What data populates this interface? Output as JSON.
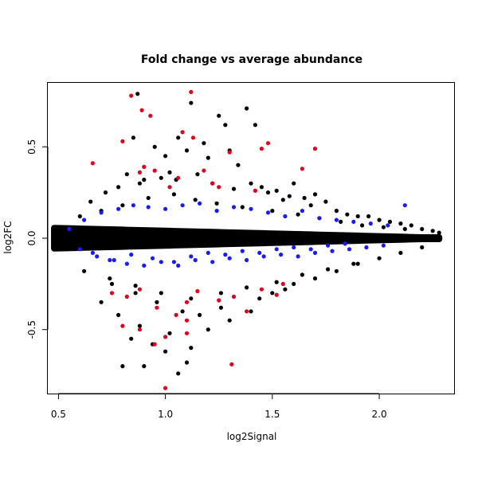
{
  "chart_data": {
    "type": "scatter",
    "title": "Fold change vs average abundance",
    "xlabel": "log2Signal",
    "ylabel": "log2FC",
    "xlim": [
      0.45,
      2.35
    ],
    "ylim": [
      -0.85,
      0.85
    ],
    "xticks": [
      0.5,
      1.0,
      1.5,
      2.0
    ],
    "xtick_labels": [
      "0.5",
      "1.0",
      "1.5",
      "2.0"
    ],
    "yticks": [
      -0.5,
      0.0,
      0.5
    ],
    "ytick_labels": [
      "-0.5",
      "0.0",
      "0.5"
    ],
    "grid": false,
    "legend": "none",
    "colors": {
      "black_points": "#000000",
      "blue_points": "#1a1aff",
      "red_points": "#e0001a"
    },
    "series": [
      {
        "color": "#000000",
        "x": [
          0.85,
          0.87,
          1.12,
          1.25,
          1.38,
          1.42,
          1.06,
          1.1,
          1.28,
          0.95,
          1.0,
          1.3,
          1.34,
          1.18,
          1.2,
          0.82,
          0.88,
          1.02,
          1.05,
          1.4,
          1.45,
          1.52,
          1.6,
          1.65,
          1.7,
          1.75,
          0.65,
          0.72,
          0.78,
          0.9,
          0.98,
          1.15,
          1.22,
          1.32,
          1.48,
          1.55,
          1.58,
          1.68,
          1.8,
          1.85,
          1.9,
          1.95,
          2.0,
          2.05,
          2.1,
          2.15,
          2.2,
          2.25,
          2.28,
          0.6,
          0.7,
          0.8,
          0.92,
          1.04,
          1.14,
          1.24,
          1.36,
          1.5,
          1.62,
          1.72,
          1.82,
          1.92,
          2.02,
          2.12,
          0.75,
          0.86,
          0.96,
          1.08,
          1.16,
          1.26,
          1.44,
          1.56,
          0.8,
          0.9,
          1.06,
          1.12,
          1.0,
          0.84,
          0.94,
          1.2,
          1.3,
          1.4,
          1.1,
          1.02,
          0.88,
          0.78,
          0.7,
          1.5,
          1.6,
          1.7,
          1.8,
          1.9,
          2.0,
          2.1,
          2.2,
          0.62,
          0.74,
          0.86,
          0.98,
          1.12,
          1.26,
          1.38,
          1.52,
          1.64,
          1.76,
          1.88
        ],
        "y": [
          0.55,
          0.79,
          0.74,
          0.67,
          0.71,
          0.62,
          0.55,
          0.48,
          0.62,
          0.5,
          0.45,
          0.48,
          0.4,
          0.52,
          0.44,
          0.35,
          0.3,
          0.36,
          0.32,
          0.3,
          0.28,
          0.26,
          0.3,
          0.22,
          0.24,
          0.2,
          0.2,
          0.25,
          0.28,
          0.32,
          0.33,
          0.35,
          0.3,
          0.27,
          0.25,
          0.21,
          0.23,
          0.18,
          0.15,
          0.13,
          0.12,
          0.12,
          0.1,
          0.09,
          0.08,
          0.07,
          0.05,
          0.04,
          0.03,
          0.12,
          0.15,
          0.18,
          0.22,
          0.24,
          0.21,
          0.19,
          0.17,
          0.15,
          0.13,
          0.11,
          0.09,
          0.07,
          0.06,
          0.05,
          -0.25,
          -0.3,
          -0.35,
          -0.4,
          -0.42,
          -0.38,
          -0.33,
          -0.28,
          -0.7,
          -0.7,
          -0.74,
          -0.6,
          -0.62,
          -0.55,
          -0.58,
          -0.5,
          -0.45,
          -0.4,
          -0.68,
          -0.52,
          -0.48,
          -0.42,
          -0.35,
          -0.3,
          -0.25,
          -0.22,
          -0.18,
          -0.14,
          -0.11,
          -0.08,
          -0.05,
          -0.18,
          -0.22,
          -0.26,
          -0.3,
          -0.33,
          -0.3,
          -0.27,
          -0.24,
          -0.2,
          -0.17,
          -0.14
        ]
      },
      {
        "color": "#1a1aff",
        "x": [
          0.55,
          0.62,
          0.7,
          0.78,
          0.85,
          0.92,
          1.0,
          1.08,
          1.16,
          1.24,
          1.32,
          1.4,
          1.48,
          1.56,
          1.64,
          1.72,
          1.8,
          1.88,
          1.96,
          2.04,
          2.12,
          0.66,
          0.74,
          0.82,
          0.9,
          0.98,
          1.06,
          1.14,
          1.22,
          1.3,
          1.38,
          1.46,
          1.54,
          1.62,
          1.7,
          1.78,
          1.86,
          1.94,
          2.02,
          0.6,
          0.68,
          0.76,
          0.84,
          0.94,
          1.04,
          1.12,
          1.2,
          1.28,
          1.36,
          1.44,
          1.52,
          1.6,
          1.68,
          1.76,
          1.84
        ],
        "y": [
          0.05,
          0.1,
          0.14,
          0.16,
          0.18,
          0.17,
          0.16,
          0.18,
          0.19,
          0.15,
          0.17,
          0.16,
          0.14,
          0.12,
          0.15,
          0.11,
          0.1,
          0.09,
          0.08,
          0.07,
          0.18,
          -0.08,
          -0.12,
          -0.14,
          -0.15,
          -0.13,
          -0.15,
          -0.12,
          -0.13,
          -0.11,
          -0.12,
          -0.1,
          -0.09,
          -0.1,
          -0.08,
          -0.07,
          -0.06,
          -0.05,
          -0.04,
          -0.06,
          -0.1,
          -0.12,
          -0.09,
          -0.11,
          -0.13,
          -0.1,
          -0.08,
          -0.09,
          -0.07,
          -0.08,
          -0.06,
          -0.05,
          -0.06,
          -0.04,
          -0.03
        ]
      },
      {
        "color": "#e0001a",
        "x": [
          0.84,
          1.12,
          0.89,
          0.93,
          1.08,
          1.13,
          1.3,
          1.45,
          1.48,
          1.7,
          1.64,
          0.66,
          0.8,
          0.88,
          0.9,
          0.95,
          1.02,
          1.06,
          1.18,
          1.22,
          1.25,
          1.42,
          0.75,
          0.82,
          0.88,
          0.96,
          1.05,
          1.1,
          1.15,
          1.25,
          1.32,
          1.38,
          1.45,
          1.52,
          1.55,
          0.8,
          0.88,
          0.95,
          1.0,
          1.1,
          1.31,
          1.0,
          1.1
        ],
        "y": [
          0.78,
          0.8,
          0.7,
          0.67,
          0.58,
          0.55,
          0.47,
          0.49,
          0.52,
          0.49,
          0.38,
          0.41,
          0.53,
          0.36,
          0.39,
          0.37,
          0.28,
          0.33,
          0.37,
          0.3,
          0.28,
          0.26,
          -0.3,
          -0.32,
          -0.28,
          -0.38,
          -0.42,
          -0.35,
          -0.29,
          -0.34,
          -0.32,
          -0.4,
          -0.28,
          -0.31,
          -0.25,
          -0.48,
          -0.5,
          -0.58,
          -0.54,
          -0.52,
          -0.69,
          -0.82,
          -0.45
        ]
      }
    ]
  }
}
